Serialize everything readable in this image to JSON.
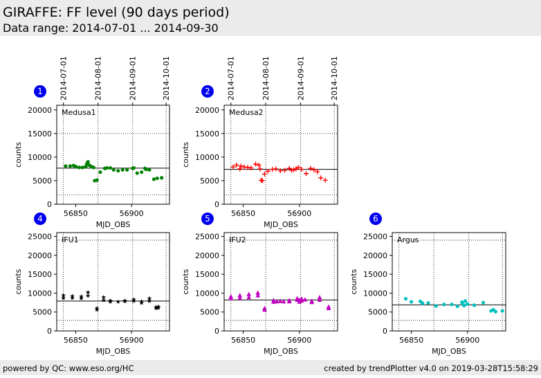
{
  "header": {
    "title": "GIRAFFE: FF level (90 days period)",
    "subtitle": "Data range: 2014-07-01 ... 2014-09-30"
  },
  "footer": {
    "left": "powered by QC: www.eso.org/HC",
    "right": "created by trendPlotter v4.0 on 2019-03-28T15:58:29"
  },
  "chart_data": [
    {
      "type": "scatter",
      "panel": "1",
      "title": "Medusa1",
      "xlabel": "MJD_OBS",
      "ylabel": "counts",
      "xlim": [
        56833,
        56934
      ],
      "ylim": [
        0,
        21000
      ],
      "xticks": [
        56850,
        56900
      ],
      "yticks": [
        0,
        5000,
        10000,
        15000,
        20000
      ],
      "x2ticks": [
        {
          "value": 56839,
          "label": "2014-07-01"
        },
        {
          "value": 56870,
          "label": "2014-08-01"
        },
        {
          "value": 56901,
          "label": "2014-09-01"
        },
        {
          "value": 56931,
          "label": "2014-10-01"
        }
      ],
      "hlines": [
        {
          "value": 7650,
          "style": "solid"
        },
        {
          "value": 15000,
          "style": "dotted"
        },
        {
          "value": 2000,
          "style": "dotted"
        }
      ],
      "series": [
        {
          "color": "#008000",
          "marker": "circle",
          "x": [
            56841,
            56845,
            56848,
            56850,
            56853,
            56856,
            56859,
            56860,
            56861,
            56862,
            56864,
            56866,
            56867,
            56869,
            56872,
            56876,
            56878,
            56881,
            56884,
            56888,
            56892,
            56896,
            56901,
            56902,
            56905,
            56909,
            56912,
            56913,
            56916,
            56920,
            56923,
            56927
          ],
          "y": [
            8100,
            8100,
            8200,
            8000,
            7800,
            7800,
            8000,
            8600,
            9000,
            8300,
            8000,
            7800,
            5000,
            5100,
            6800,
            7600,
            7700,
            7700,
            7300,
            7100,
            7300,
            7300,
            7600,
            7700,
            6600,
            6800,
            7600,
            7400,
            7300,
            5300,
            5500,
            5600
          ]
        }
      ]
    },
    {
      "type": "scatter",
      "panel": "2",
      "title": "Medusa2",
      "xlabel": "MJD_OBS",
      "ylabel": "counts",
      "xlim": [
        56833,
        56934
      ],
      "ylim": [
        0,
        21000
      ],
      "xticks": [
        56850,
        56900
      ],
      "yticks": [
        0,
        5000,
        10000,
        15000,
        20000
      ],
      "x2ticks": [
        {
          "value": 56839,
          "label": "2014-07-01"
        },
        {
          "value": 56870,
          "label": "2014-08-01"
        },
        {
          "value": 56901,
          "label": "2014-09-01"
        },
        {
          "value": 56931,
          "label": "2014-10-01"
        }
      ],
      "hlines": [
        {
          "value": 7400,
          "style": "solid"
        },
        {
          "value": 15000,
          "style": "dotted"
        },
        {
          "value": 2000,
          "style": "dotted"
        }
      ],
      "series": [
        {
          "color": "#ff0000",
          "marker": "plus",
          "x": [
            56841,
            56844,
            56847,
            56848,
            56851,
            56854,
            56857,
            56861,
            56864,
            56865,
            56866,
            56867,
            56869,
            56872,
            56876,
            56879,
            56883,
            56887,
            56891,
            56893,
            56895,
            56897,
            56899,
            56902,
            56906,
            56910,
            56913,
            56916,
            56919,
            56923
          ],
          "y": [
            7900,
            8300,
            7500,
            8100,
            7900,
            7800,
            7700,
            8500,
            8300,
            7500,
            5100,
            5000,
            6400,
            7000,
            7400,
            7500,
            7100,
            7200,
            7600,
            7200,
            7300,
            7500,
            7800,
            7400,
            6500,
            7600,
            7300,
            6900,
            5600,
            5100
          ]
        }
      ]
    },
    {
      "type": "scatter",
      "panel": "4",
      "title": "IFU1",
      "xlabel": "MJD_OBS",
      "ylabel": "counts",
      "xlim": [
        56833,
        56934
      ],
      "ylim": [
        0,
        26000
      ],
      "xticks": [
        56850,
        56900
      ],
      "yticks": [
        0,
        5000,
        10000,
        15000,
        20000,
        25000
      ],
      "x2ticks": [
        56839,
        56870,
        56901,
        56931
      ],
      "hlines": [
        {
          "value": 7900,
          "style": "solid"
        },
        {
          "value": 24000,
          "style": "dotted"
        },
        {
          "value": 2800,
          "style": "dotted"
        }
      ],
      "series": [
        {
          "color": "#000000",
          "marker": "star",
          "x": [
            56839,
            56839,
            56847,
            56847,
            56855,
            56855,
            56861,
            56861,
            56869,
            56869,
            56875,
            56875,
            56881,
            56881,
            56888,
            56894,
            56894,
            56902,
            56902,
            56909,
            56909,
            56916,
            56916,
            56922,
            56922,
            56924,
            56924
          ],
          "y": [
            9400,
            8700,
            9200,
            8700,
            9100,
            8600,
            10200,
            9300,
            6000,
            5600,
            8900,
            8100,
            8000,
            7700,
            7700,
            8000,
            7800,
            8300,
            7900,
            7800,
            7400,
            8600,
            7900,
            6300,
            6000,
            6400,
            6100
          ]
        }
      ]
    },
    {
      "type": "scatter",
      "panel": "5",
      "title": "IFU2",
      "xlabel": "MJD_OBS",
      "ylabel": "counts",
      "xlim": [
        56833,
        56934
      ],
      "ylim": [
        0,
        26000
      ],
      "xticks": [
        56850,
        56900
      ],
      "yticks": [
        0,
        5000,
        10000,
        15000,
        20000,
        25000
      ],
      "x2ticks": [
        56839,
        56870,
        56901,
        56931
      ],
      "hlines": [
        {
          "value": 8200,
          "style": "solid"
        },
        {
          "value": 24000,
          "style": "dotted"
        },
        {
          "value": 2800,
          "style": "dotted"
        }
      ],
      "series": [
        {
          "color": "#bf00bf",
          "marker": "triangle",
          "x": [
            56839,
            56839,
            56847,
            56847,
            56855,
            56855,
            56863,
            56863,
            56869,
            56869,
            56877,
            56877,
            56880,
            56883,
            56886,
            56891,
            56891,
            56898,
            56898,
            56900,
            56900,
            56902,
            56902,
            56905,
            56911,
            56911,
            56918,
            56918,
            56926,
            56926
          ],
          "y": [
            9100,
            8600,
            9400,
            8700,
            9700,
            8900,
            10100,
            9400,
            6000,
            5600,
            8100,
            7700,
            7800,
            7900,
            7800,
            8100,
            7800,
            8600,
            8200,
            8200,
            7700,
            8500,
            8000,
            8300,
            7900,
            7600,
            8900,
            8200,
            6400,
            6000
          ]
        }
      ]
    },
    {
      "type": "scatter",
      "panel": "6",
      "title": "Argus",
      "xlabel": "MJD_OBS",
      "ylabel": "counts",
      "xlim": [
        56833,
        56934
      ],
      "ylim": [
        0,
        26000
      ],
      "xticks": [
        56850,
        56900
      ],
      "yticks": [
        0,
        5000,
        10000,
        15000,
        20000,
        25000
      ],
      "x2ticks": [
        56839,
        56870,
        56901,
        56931
      ],
      "hlines": [
        {
          "value": 6900,
          "style": "solid"
        },
        {
          "value": 24000,
          "style": "dotted"
        },
        {
          "value": 2800,
          "style": "dotted"
        }
      ],
      "series": [
        {
          "color": "#00bfbf",
          "marker": "circle",
          "x": [
            56845,
            56850,
            56858,
            56860,
            56865,
            56872,
            56879,
            56886,
            56891,
            56895,
            56896,
            56897,
            56898,
            56900,
            56906,
            56914,
            56921,
            56923,
            56925,
            56931
          ],
          "y": [
            8500,
            7700,
            7800,
            7300,
            7400,
            6600,
            7000,
            7000,
            6500,
            7600,
            7000,
            6700,
            7900,
            7100,
            6800,
            7500,
            5300,
            5600,
            5100,
            5300
          ]
        }
      ]
    }
  ]
}
